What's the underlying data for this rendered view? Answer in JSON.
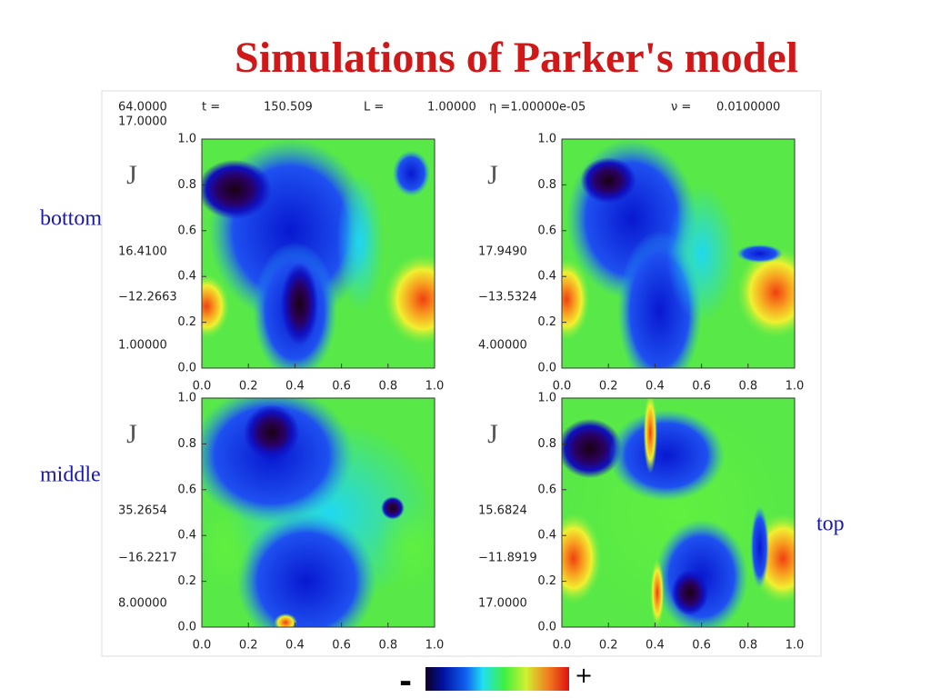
{
  "title": "Simulations of Parker's model",
  "header": {
    "items": [
      "64.0000",
      "t =",
      "150.509",
      "L =",
      "1.00000",
      "η =1.00000e-05",
      "ν =",
      "0.0100000"
    ],
    "second_line": "17.0000"
  },
  "panels": [
    {
      "symbol": "J",
      "side_label": "bottom",
      "info": [
        "16.4100",
        "−12.2663",
        "1.00000"
      ],
      "yticks": [
        "1.0",
        "0.8",
        "0.6",
        "0.4",
        "0.2",
        "0.0"
      ],
      "xticks": [
        "0.0",
        "0.2",
        "0.4",
        "0.6",
        "0.8",
        "1.0"
      ]
    },
    {
      "symbol": "J",
      "info": [
        "17.9490",
        "−13.5324",
        "4.00000"
      ],
      "yticks": [
        "1.0",
        "0.8",
        "0.6",
        "0.4",
        "0.2",
        "0.0"
      ],
      "xticks": [
        "0.0",
        "0.2",
        "0.4",
        "0.6",
        "0.8",
        "1.0"
      ]
    },
    {
      "symbol": "J",
      "side_label": "middle",
      "info": [
        "35.2654",
        "−16.2217",
        "8.00000"
      ],
      "yticks": [
        "1.0",
        "0.8",
        "0.6",
        "0.4",
        "0.2",
        "0.0"
      ],
      "xticks": [
        "0.0",
        "0.2",
        "0.4",
        "0.6",
        "0.8",
        "1.0"
      ]
    },
    {
      "symbol": "J",
      "side_label": "top",
      "info": [
        "15.6824",
        "−11.8919",
        "17.0000"
      ],
      "yticks": [
        "1.0",
        "0.8",
        "0.6",
        "0.4",
        "0.2",
        "0.0"
      ],
      "xticks": [
        "0.0",
        "0.2",
        "0.4",
        "0.6",
        "0.8",
        "1.0"
      ]
    }
  ],
  "colorbar": {
    "minus": "-",
    "plus": "+"
  }
}
